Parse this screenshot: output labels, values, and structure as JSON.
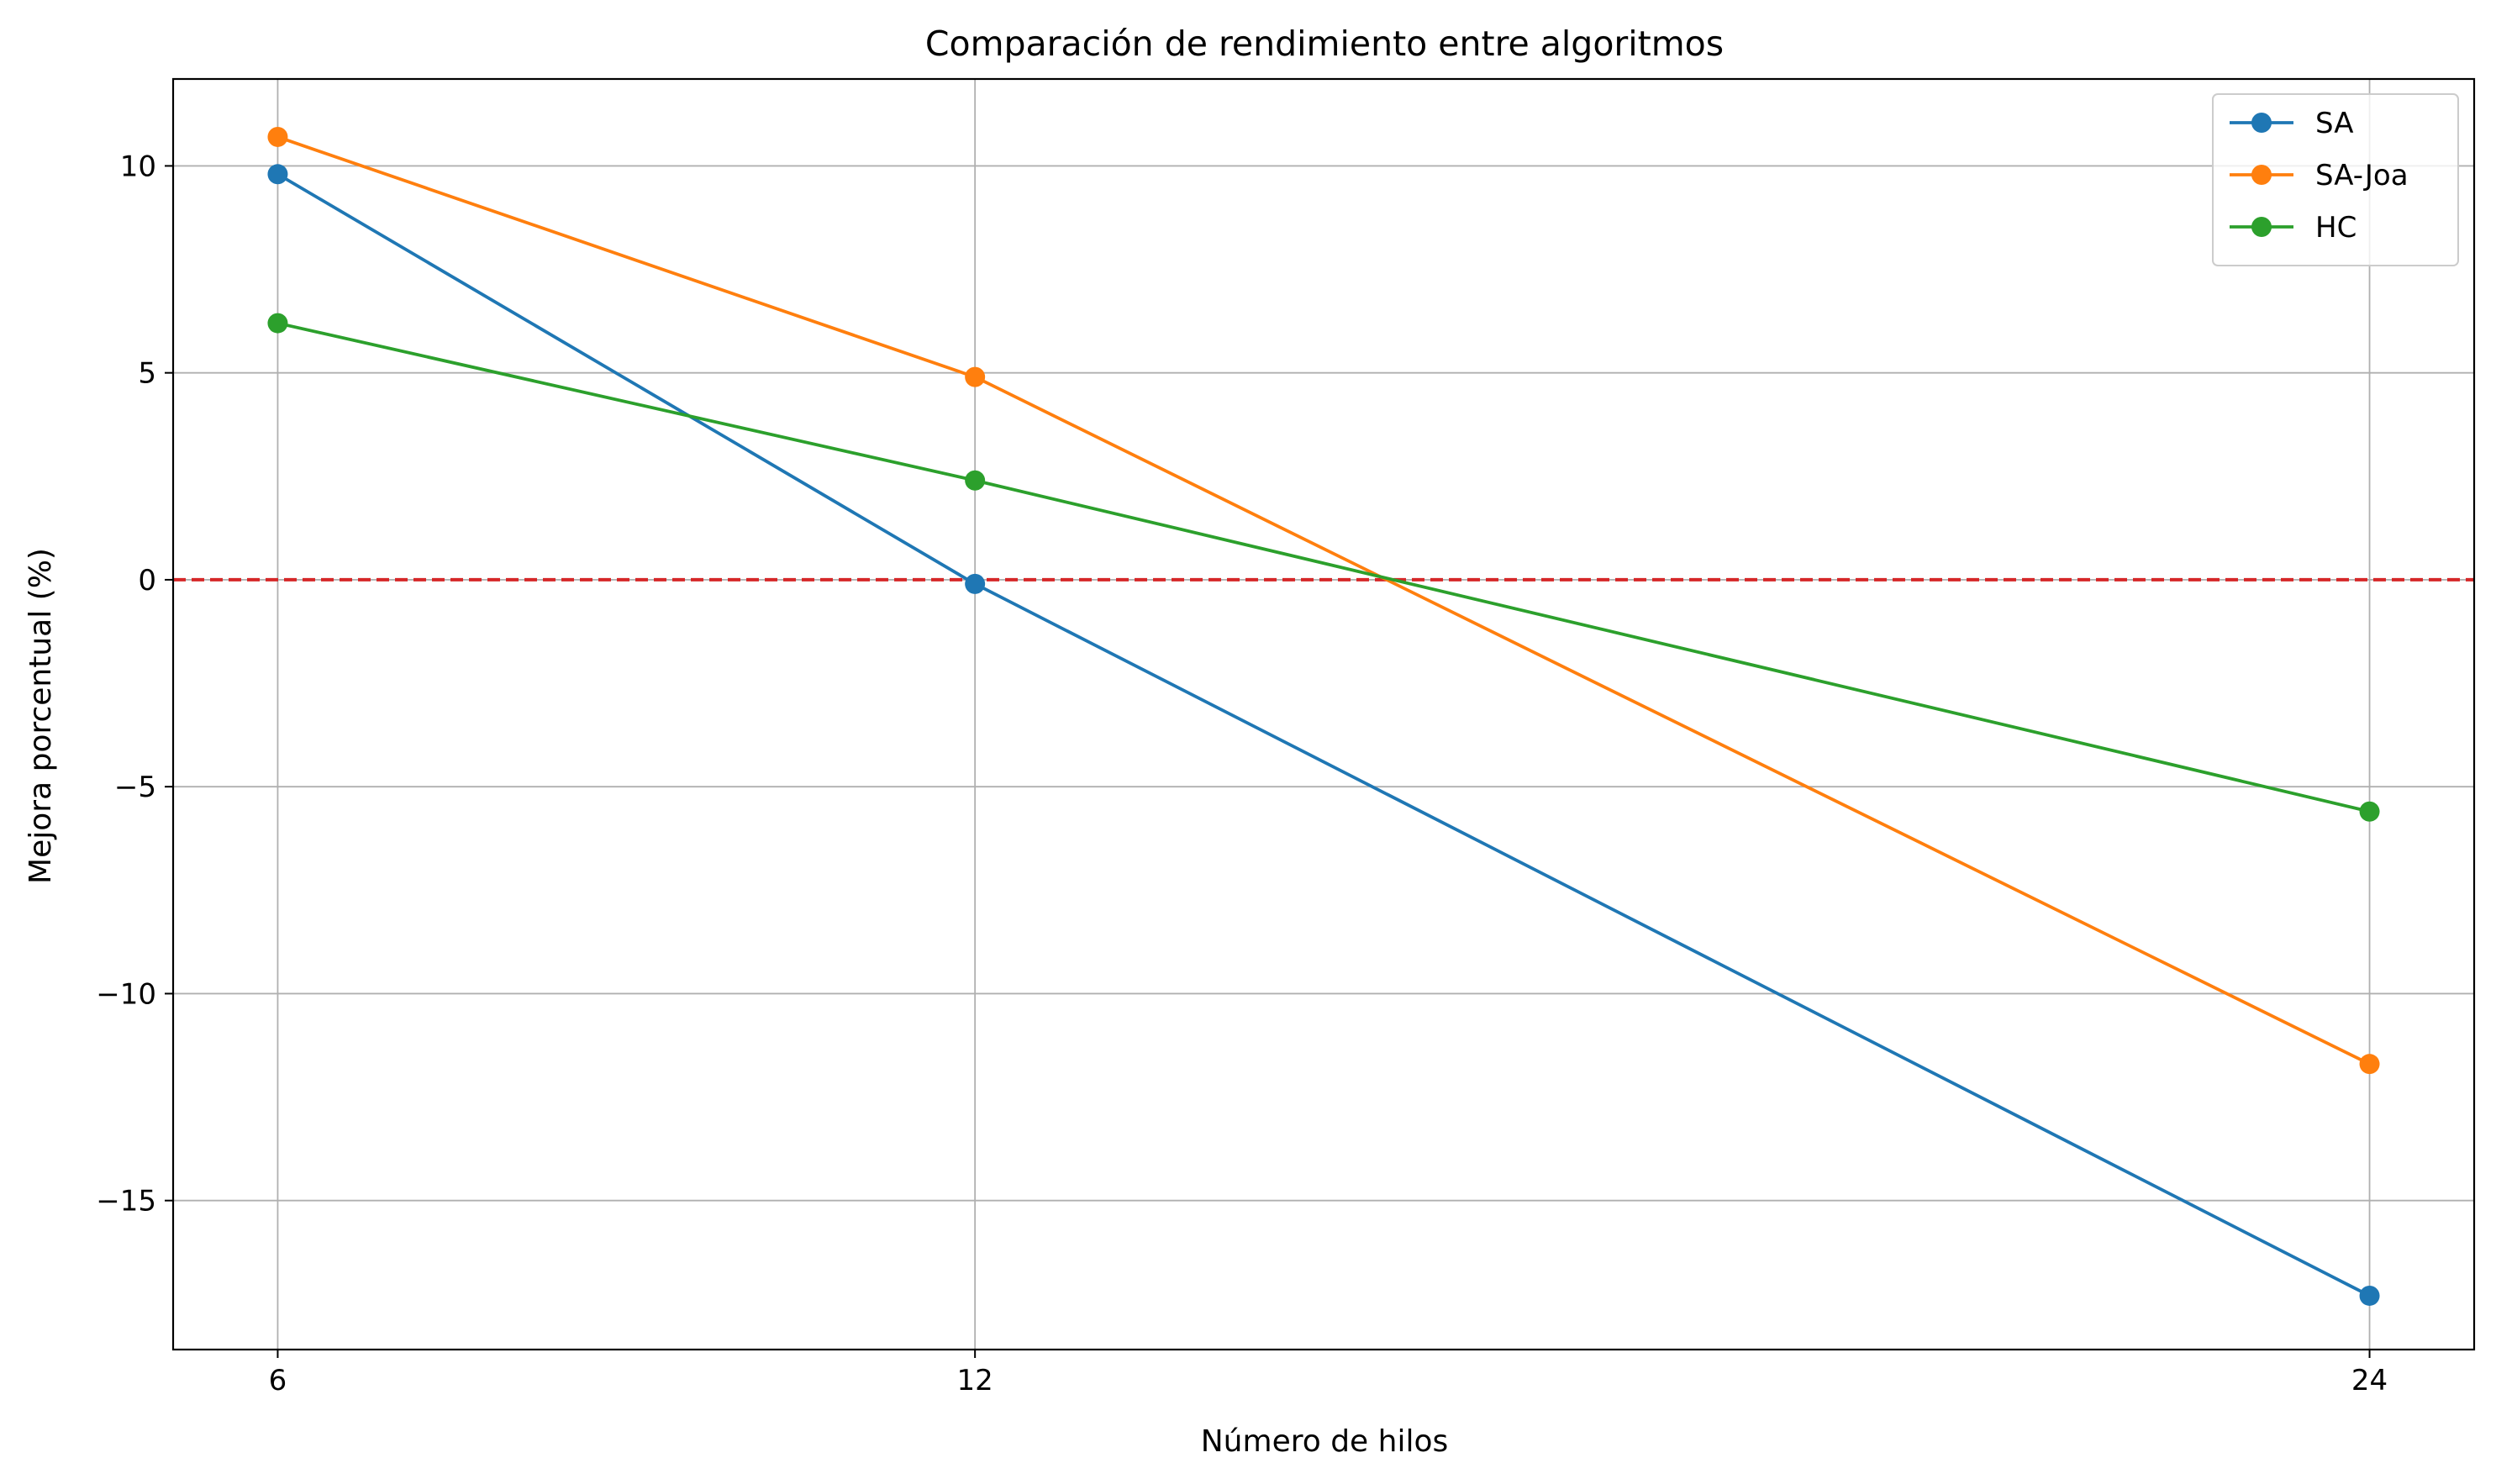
{
  "chart_data": {
    "type": "line",
    "title": "Comparación de rendimiento entre algoritmos",
    "xlabel": "Número de hilos",
    "ylabel": "Mejora porcentual (%)",
    "x": [
      6,
      12,
      24
    ],
    "x_ticks": [
      6,
      12,
      24
    ],
    "x_tick_labels": [
      "6",
      "12",
      "24"
    ],
    "xlim": [
      5.1,
      24.9
    ],
    "y_ticks": [
      10,
      5,
      0,
      -5,
      -10,
      -15
    ],
    "y_tick_labels": [
      "10",
      "5",
      "0",
      "−5",
      "−10",
      "−15"
    ],
    "ylim": [
      -18.6,
      12.1
    ],
    "grid": true,
    "legend_position": "top-right",
    "series": [
      {
        "name": "SA",
        "values": [
          9.8,
          -0.1,
          -17.3
        ],
        "color": "#1f77b4",
        "marker": "circle"
      },
      {
        "name": "SA-Joa",
        "values": [
          10.7,
          4.9,
          -11.7
        ],
        "color": "#ff7f0e",
        "marker": "circle"
      },
      {
        "name": "HC",
        "values": [
          6.2,
          2.4,
          -5.6
        ],
        "color": "#2ca02c",
        "marker": "circle"
      }
    ],
    "reference_line": {
      "y": 0,
      "color": "#d62728",
      "style": "dashed"
    }
  }
}
